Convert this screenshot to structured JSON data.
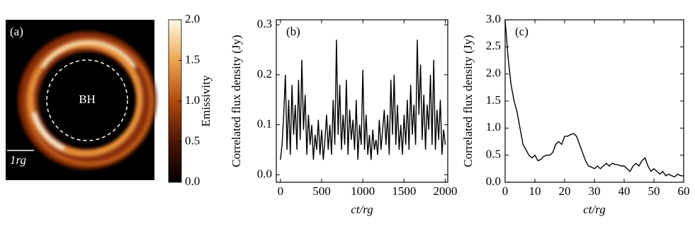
{
  "chart_data": [
    {
      "type": "image",
      "panel_label": "(a)",
      "center_label": "BH",
      "scale_label": "1rg",
      "colorbar": {
        "label": "Emissivity",
        "lim": [
          0,
          2
        ],
        "ticks": [
          {
            "value": 0,
            "label": "0.0"
          },
          {
            "value": 0.5,
            "label": "0.5"
          },
          {
            "value": 1,
            "label": "1.0"
          },
          {
            "value": 1.5,
            "label": "1.5"
          },
          {
            "value": 2,
            "label": "2.0"
          }
        ]
      }
    },
    {
      "type": "line",
      "panel_label": "(b)",
      "x_label": "ct/rg",
      "y_label": "Correlated flux density (Jy)",
      "color": "#000000",
      "xlim": [
        -50,
        2030
      ],
      "ylim": [
        -0.015,
        0.31
      ],
      "xticks": [
        0,
        500,
        1000,
        1500,
        2000
      ],
      "yticks": [
        {
          "value": 0,
          "label": "0.0"
        },
        0.1,
        0.2,
        0.3
      ],
      "x": [
        0,
        20,
        40,
        60,
        80,
        100,
        120,
        140,
        160,
        180,
        200,
        220,
        240,
        260,
        280,
        300,
        320,
        340,
        360,
        380,
        400,
        420,
        440,
        460,
        480,
        500,
        520,
        540,
        560,
        580,
        600,
        620,
        640,
        660,
        680,
        700,
        720,
        740,
        760,
        780,
        800,
        820,
        840,
        860,
        880,
        900,
        920,
        940,
        960,
        980,
        1000,
        1020,
        1040,
        1060,
        1080,
        1100,
        1120,
        1140,
        1160,
        1180,
        1200,
        1220,
        1240,
        1260,
        1280,
        1300,
        1320,
        1340,
        1360,
        1380,
        1400,
        1420,
        1440,
        1460,
        1480,
        1500,
        1520,
        1540,
        1560,
        1580,
        1600,
        1620,
        1640,
        1660,
        1680,
        1700,
        1720,
        1740,
        1760,
        1780,
        1800,
        1820,
        1840,
        1860,
        1880,
        1900,
        1920,
        1940,
        1960,
        1980,
        2000
      ],
      "values": [
        0.03,
        0.06,
        0.12,
        0.2,
        0.05,
        0.15,
        0.04,
        0.18,
        0.08,
        0.14,
        0.05,
        0.19,
        0.07,
        0.23,
        0.09,
        0.16,
        0.04,
        0.12,
        0.06,
        0.1,
        0.03,
        0.08,
        0.05,
        0.11,
        0.04,
        0.09,
        0.03,
        0.07,
        0.12,
        0.05,
        0.1,
        0.04,
        0.15,
        0.06,
        0.27,
        0.08,
        0.18,
        0.05,
        0.12,
        0.06,
        0.19,
        0.04,
        0.13,
        0.07,
        0.11,
        0.05,
        0.15,
        0.03,
        0.1,
        0.06,
        0.21,
        0.05,
        0.12,
        0.04,
        0.08,
        0.03,
        0.09,
        0.05,
        0.07,
        0.04,
        0.11,
        0.05,
        0.09,
        0.13,
        0.06,
        0.12,
        0.04,
        0.19,
        0.08,
        0.2,
        0.06,
        0.14,
        0.05,
        0.1,
        0.04,
        0.12,
        0.06,
        0.15,
        0.05,
        0.18,
        0.08,
        0.14,
        0.06,
        0.27,
        0.12,
        0.22,
        0.07,
        0.16,
        0.05,
        0.14,
        0.09,
        0.2,
        0.06,
        0.23,
        0.05,
        0.13,
        0.07,
        0.15,
        0.04,
        0.09,
        0.06
      ]
    },
    {
      "type": "line",
      "panel_label": "(c)",
      "x_label": "ct/rg",
      "y_label": "Correlated flux density (Jy)",
      "color": "#000000",
      "xlim": [
        0,
        60
      ],
      "ylim": [
        0,
        3
      ],
      "xticks": [
        0,
        10,
        20,
        30,
        40,
        50,
        60
      ],
      "yticks": [
        {
          "value": 0,
          "label": "0.0"
        },
        0.5,
        {
          "value": 1,
          "label": "1.0"
        },
        1.5,
        {
          "value": 2,
          "label": "2.0"
        },
        2.5,
        {
          "value": 3,
          "label": "3.0"
        }
      ],
      "x": [
        0,
        1,
        2,
        3,
        4,
        5,
        6,
        7,
        8,
        9,
        10,
        11,
        12,
        13,
        14,
        15,
        16,
        17,
        18,
        19,
        20,
        21,
        22,
        23,
        24,
        25,
        26,
        27,
        28,
        29,
        30,
        31,
        32,
        33,
        34,
        35,
        36,
        37,
        38,
        39,
        40,
        41,
        42,
        43,
        44,
        45,
        46,
        47,
        48,
        49,
        50,
        51,
        52,
        53,
        54,
        55,
        56,
        57,
        58,
        59,
        60
      ],
      "values": [
        3.0,
        2.3,
        1.8,
        1.5,
        1.3,
        1.0,
        0.7,
        0.6,
        0.5,
        0.45,
        0.5,
        0.4,
        0.42,
        0.48,
        0.5,
        0.5,
        0.55,
        0.7,
        0.75,
        0.7,
        0.85,
        0.85,
        0.88,
        0.9,
        0.85,
        0.7,
        0.55,
        0.4,
        0.3,
        0.28,
        0.25,
        0.3,
        0.25,
        0.3,
        0.35,
        0.3,
        0.35,
        0.33,
        0.32,
        0.3,
        0.3,
        0.25,
        0.2,
        0.3,
        0.35,
        0.3,
        0.4,
        0.45,
        0.3,
        0.2,
        0.25,
        0.2,
        0.15,
        0.2,
        0.12,
        0.15,
        0.12,
        0.1,
        0.15,
        0.12,
        0.12
      ]
    }
  ]
}
